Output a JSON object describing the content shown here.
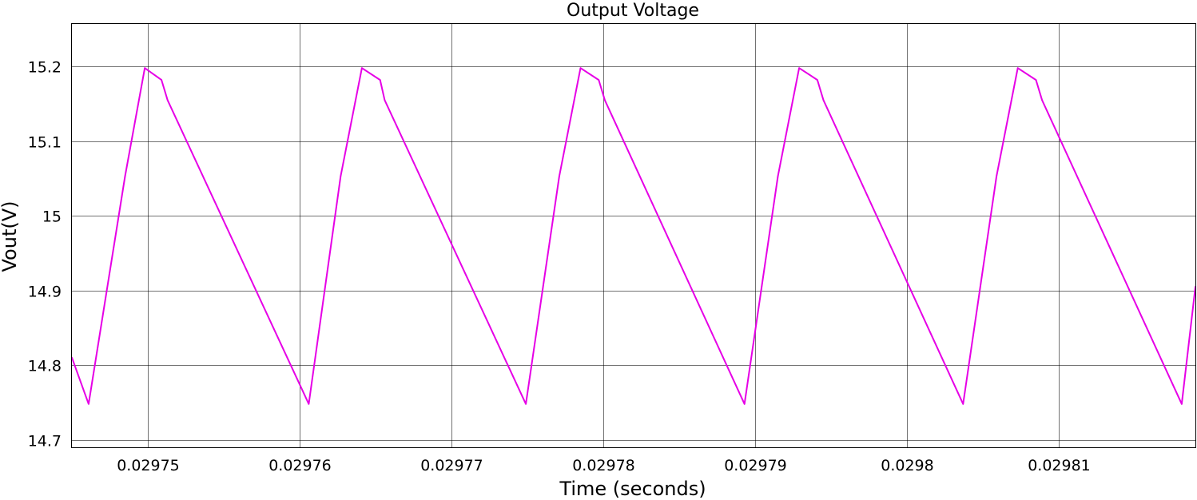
{
  "chart_data": {
    "type": "line",
    "title": "Output Voltage",
    "xlabel": "Time (seconds)",
    "ylabel": "Vout(V)",
    "xlim": [
      0.029745,
      0.029819
    ],
    "ylim": [
      14.69,
      15.257
    ],
    "grid": true,
    "x_ticks": [
      0.02975,
      0.02976,
      0.02977,
      0.02978,
      0.02979,
      0.0298,
      0.02981
    ],
    "x_tick_labels": [
      "0.02975",
      "0.02976",
      "0.02977",
      "0.02978",
      "0.02979",
      "0.0298",
      "0.02981"
    ],
    "y_ticks": [
      14.7,
      14.8,
      14.9,
      15,
      15.1,
      15.2
    ],
    "y_tick_labels": [
      "14.7",
      "14.8",
      "14.9",
      "15",
      "15.1",
      "15.2"
    ],
    "series": [
      {
        "color": "#e600e6",
        "x": [
          0.029745,
          0.0297461,
          0.0297485,
          0.0297498,
          0.0297509,
          0.0297513,
          0.0297606,
          0.0297627,
          0.0297641,
          0.0297653,
          0.0297656,
          0.0297749,
          0.0297771,
          0.0297785,
          0.0297797,
          0.0297801,
          0.0297893,
          0.0297915,
          0.0297929,
          0.0297941,
          0.0297945,
          0.0298037,
          0.0298059,
          0.0298073,
          0.0298085,
          0.0298089,
          0.0298181,
          0.029819
        ],
        "y": [
          14.81,
          14.748,
          15.053,
          15.198,
          15.182,
          15.155,
          14.748,
          15.053,
          15.198,
          15.182,
          15.155,
          14.748,
          15.053,
          15.198,
          15.182,
          15.155,
          14.748,
          15.053,
          15.198,
          15.182,
          15.155,
          14.748,
          15.053,
          15.198,
          15.182,
          15.155,
          14.748,
          14.905
        ]
      }
    ]
  }
}
